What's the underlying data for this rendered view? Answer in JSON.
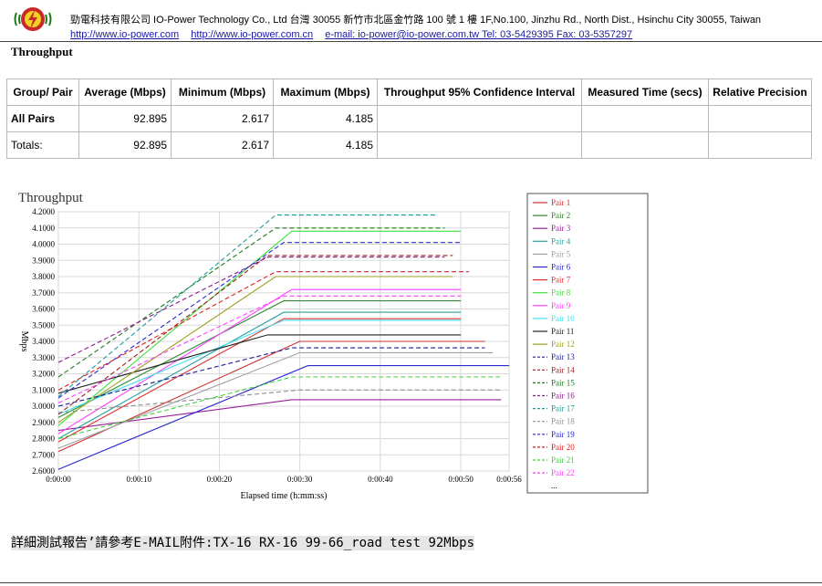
{
  "header": {
    "line1": "勁電科技有限公司 IO-Power Technology Co., Ltd    台灣 30055 新竹市北區金竹路 100 號 1 樓  1F,No.100, Jinzhu Rd., North Dist., Hsinchu City 30055, Taiwan",
    "links": [
      "http://www.io-power.com",
      "http://www.io-power.com.cn",
      "e-mail: io-power@io-power.com.tw Tel: 03-5429395    Fax: 03-5357297"
    ]
  },
  "section_title": "Throughput",
  "table": {
    "headers": [
      "Group/ Pair",
      "Average (Mbps)",
      "Minimum (Mbps)",
      "Maximum (Mbps)",
      "Throughput 95% Confidence Interval",
      "Measured Time (secs)",
      "Relative Precision"
    ],
    "rows": [
      {
        "label": "All Pairs",
        "average": "92.895",
        "minimum": "2.617",
        "maximum": "4.185",
        "ci": "",
        "time": "",
        "precision": ""
      },
      {
        "label": "Totals:",
        "average": "92.895",
        "minimum": "2.617",
        "maximum": "4.185",
        "ci": "",
        "time": "",
        "precision": ""
      }
    ]
  },
  "chart_data": {
    "type": "line",
    "title": "Throughput",
    "xlabel": "Elapsed time (h:mm:ss)",
    "ylabel": "Mbps",
    "xlim": [
      0,
      56
    ],
    "ylim": [
      2.6,
      4.2
    ],
    "x_ticks": [
      "0:00:00",
      "0:00:10",
      "0:00:20",
      "0:00:30",
      "0:00:40",
      "0:00:50",
      "0:00:56"
    ],
    "x_tick_values": [
      0,
      10,
      20,
      30,
      40,
      50,
      56
    ],
    "y_ticks": [
      "2.6000",
      "2.7000",
      "2.8000",
      "2.9000",
      "3.0000",
      "3.1000",
      "3.2000",
      "3.3000",
      "3.4000",
      "3.5000",
      "3.6000",
      "3.7000",
      "3.8000",
      "3.9000",
      "4.0000",
      "4.1000",
      "4.2000"
    ],
    "y_tick_values": [
      2.6,
      2.7,
      2.8,
      2.9,
      3.0,
      3.1,
      3.2,
      3.3,
      3.4,
      3.5,
      3.6,
      3.7,
      3.8,
      3.9,
      4.0,
      4.1,
      4.2
    ],
    "grid": true,
    "legend_position": "right",
    "legend_more": "...",
    "series": [
      {
        "name": "Pair 1",
        "color": "#c83232",
        "dash": false,
        "points": [
          [
            0,
            2.72
          ],
          [
            30,
            3.4
          ],
          [
            53,
            3.4
          ]
        ]
      },
      {
        "name": "Pair 2",
        "color": "#2e8b2e",
        "dash": false,
        "points": [
          [
            0,
            2.93
          ],
          [
            28,
            3.65
          ],
          [
            50,
            3.65
          ]
        ]
      },
      {
        "name": "Pair 3",
        "color": "#9a1e9a",
        "dash": false,
        "points": [
          [
            0,
            2.85
          ],
          [
            29,
            3.04
          ],
          [
            55,
            3.04
          ]
        ]
      },
      {
        "name": "Pair 4",
        "color": "#2aa0a0",
        "dash": false,
        "points": [
          [
            0,
            2.8
          ],
          [
            28,
            3.58
          ],
          [
            50,
            3.58
          ]
        ]
      },
      {
        "name": "Pair 5",
        "color": "#a0a0a0",
        "dash": false,
        "points": [
          [
            0,
            2.74
          ],
          [
            30,
            3.33
          ],
          [
            54,
            3.33
          ]
        ]
      },
      {
        "name": "Pair 6",
        "color": "#2a2ad0",
        "dash": false,
        "points": [
          [
            0,
            2.61
          ],
          [
            31,
            3.25
          ],
          [
            56,
            3.25
          ]
        ]
      },
      {
        "name": "Pair 7",
        "color": "#e03030",
        "dash": false,
        "points": [
          [
            0,
            2.78
          ],
          [
            28,
            3.54
          ],
          [
            50,
            3.54
          ]
        ]
      },
      {
        "name": "Pair 8",
        "color": "#40e040",
        "dash": false,
        "points": [
          [
            0,
            2.88
          ],
          [
            29,
            4.08
          ],
          [
            50,
            4.08
          ]
        ]
      },
      {
        "name": "Pair 9",
        "color": "#ff40ff",
        "dash": false,
        "points": [
          [
            0,
            2.83
          ],
          [
            29,
            3.72
          ],
          [
            50,
            3.72
          ]
        ]
      },
      {
        "name": "Pair 10",
        "color": "#40e0f0",
        "dash": false,
        "points": [
          [
            0,
            2.95
          ],
          [
            28,
            3.53
          ],
          [
            50,
            3.53
          ]
        ]
      },
      {
        "name": "Pair 11",
        "color": "#222222",
        "dash": false,
        "points": [
          [
            0,
            3.08
          ],
          [
            26,
            3.44
          ],
          [
            50,
            3.44
          ]
        ]
      },
      {
        "name": "Pair 12",
        "color": "#a0a020",
        "dash": false,
        "points": [
          [
            0,
            2.9
          ],
          [
            27,
            3.8
          ],
          [
            49,
            3.8
          ]
        ]
      },
      {
        "name": "Pair 13",
        "color": "#1e1e9a",
        "dash": true,
        "points": [
          [
            0,
            3.0
          ],
          [
            29,
            3.36
          ],
          [
            53,
            3.36
          ]
        ]
      },
      {
        "name": "Pair 14",
        "color": "#9a1e1e",
        "dash": true,
        "points": [
          [
            0,
            2.95
          ],
          [
            26,
            3.93
          ],
          [
            49,
            3.93
          ]
        ]
      },
      {
        "name": "Pair 15",
        "color": "#1e7a1e",
        "dash": true,
        "points": [
          [
            0,
            3.18
          ],
          [
            27,
            4.1
          ],
          [
            48,
            4.1
          ]
        ]
      },
      {
        "name": "Pair 16",
        "color": "#8a1e8a",
        "dash": true,
        "points": [
          [
            0,
            3.27
          ],
          [
            26,
            3.92
          ],
          [
            48,
            3.92
          ]
        ]
      },
      {
        "name": "Pair 17",
        "color": "#1e9a9a",
        "dash": true,
        "points": [
          [
            0,
            3.06
          ],
          [
            27,
            4.18
          ],
          [
            47,
            4.18
          ]
        ]
      },
      {
        "name": "Pair 18",
        "color": "#909090",
        "dash": true,
        "points": [
          [
            0,
            2.96
          ],
          [
            30,
            3.1
          ],
          [
            55,
            3.1
          ]
        ]
      },
      {
        "name": "Pair 19",
        "color": "#2a2ad0",
        "dash": true,
        "points": [
          [
            0,
            3.05
          ],
          [
            28,
            4.01
          ],
          [
            50,
            4.01
          ]
        ]
      },
      {
        "name": "Pair 20",
        "color": "#d82020",
        "dash": true,
        "points": [
          [
            0,
            3.1
          ],
          [
            27,
            3.83
          ],
          [
            51,
            3.83
          ]
        ]
      },
      {
        "name": "Pair 21",
        "color": "#40d040",
        "dash": true,
        "points": [
          [
            0,
            2.8
          ],
          [
            29,
            3.18
          ],
          [
            55,
            3.18
          ]
        ]
      },
      {
        "name": "Pair 22",
        "color": "#ff40ff",
        "dash": true,
        "points": [
          [
            0,
            3.02
          ],
          [
            28,
            3.68
          ],
          [
            50,
            3.68
          ]
        ]
      }
    ]
  },
  "footer": {
    "label": "詳細測試報告’請參考E-MAIL附件:",
    "value": "TX-16 RX-16 99-66_road test 92Mbps"
  }
}
